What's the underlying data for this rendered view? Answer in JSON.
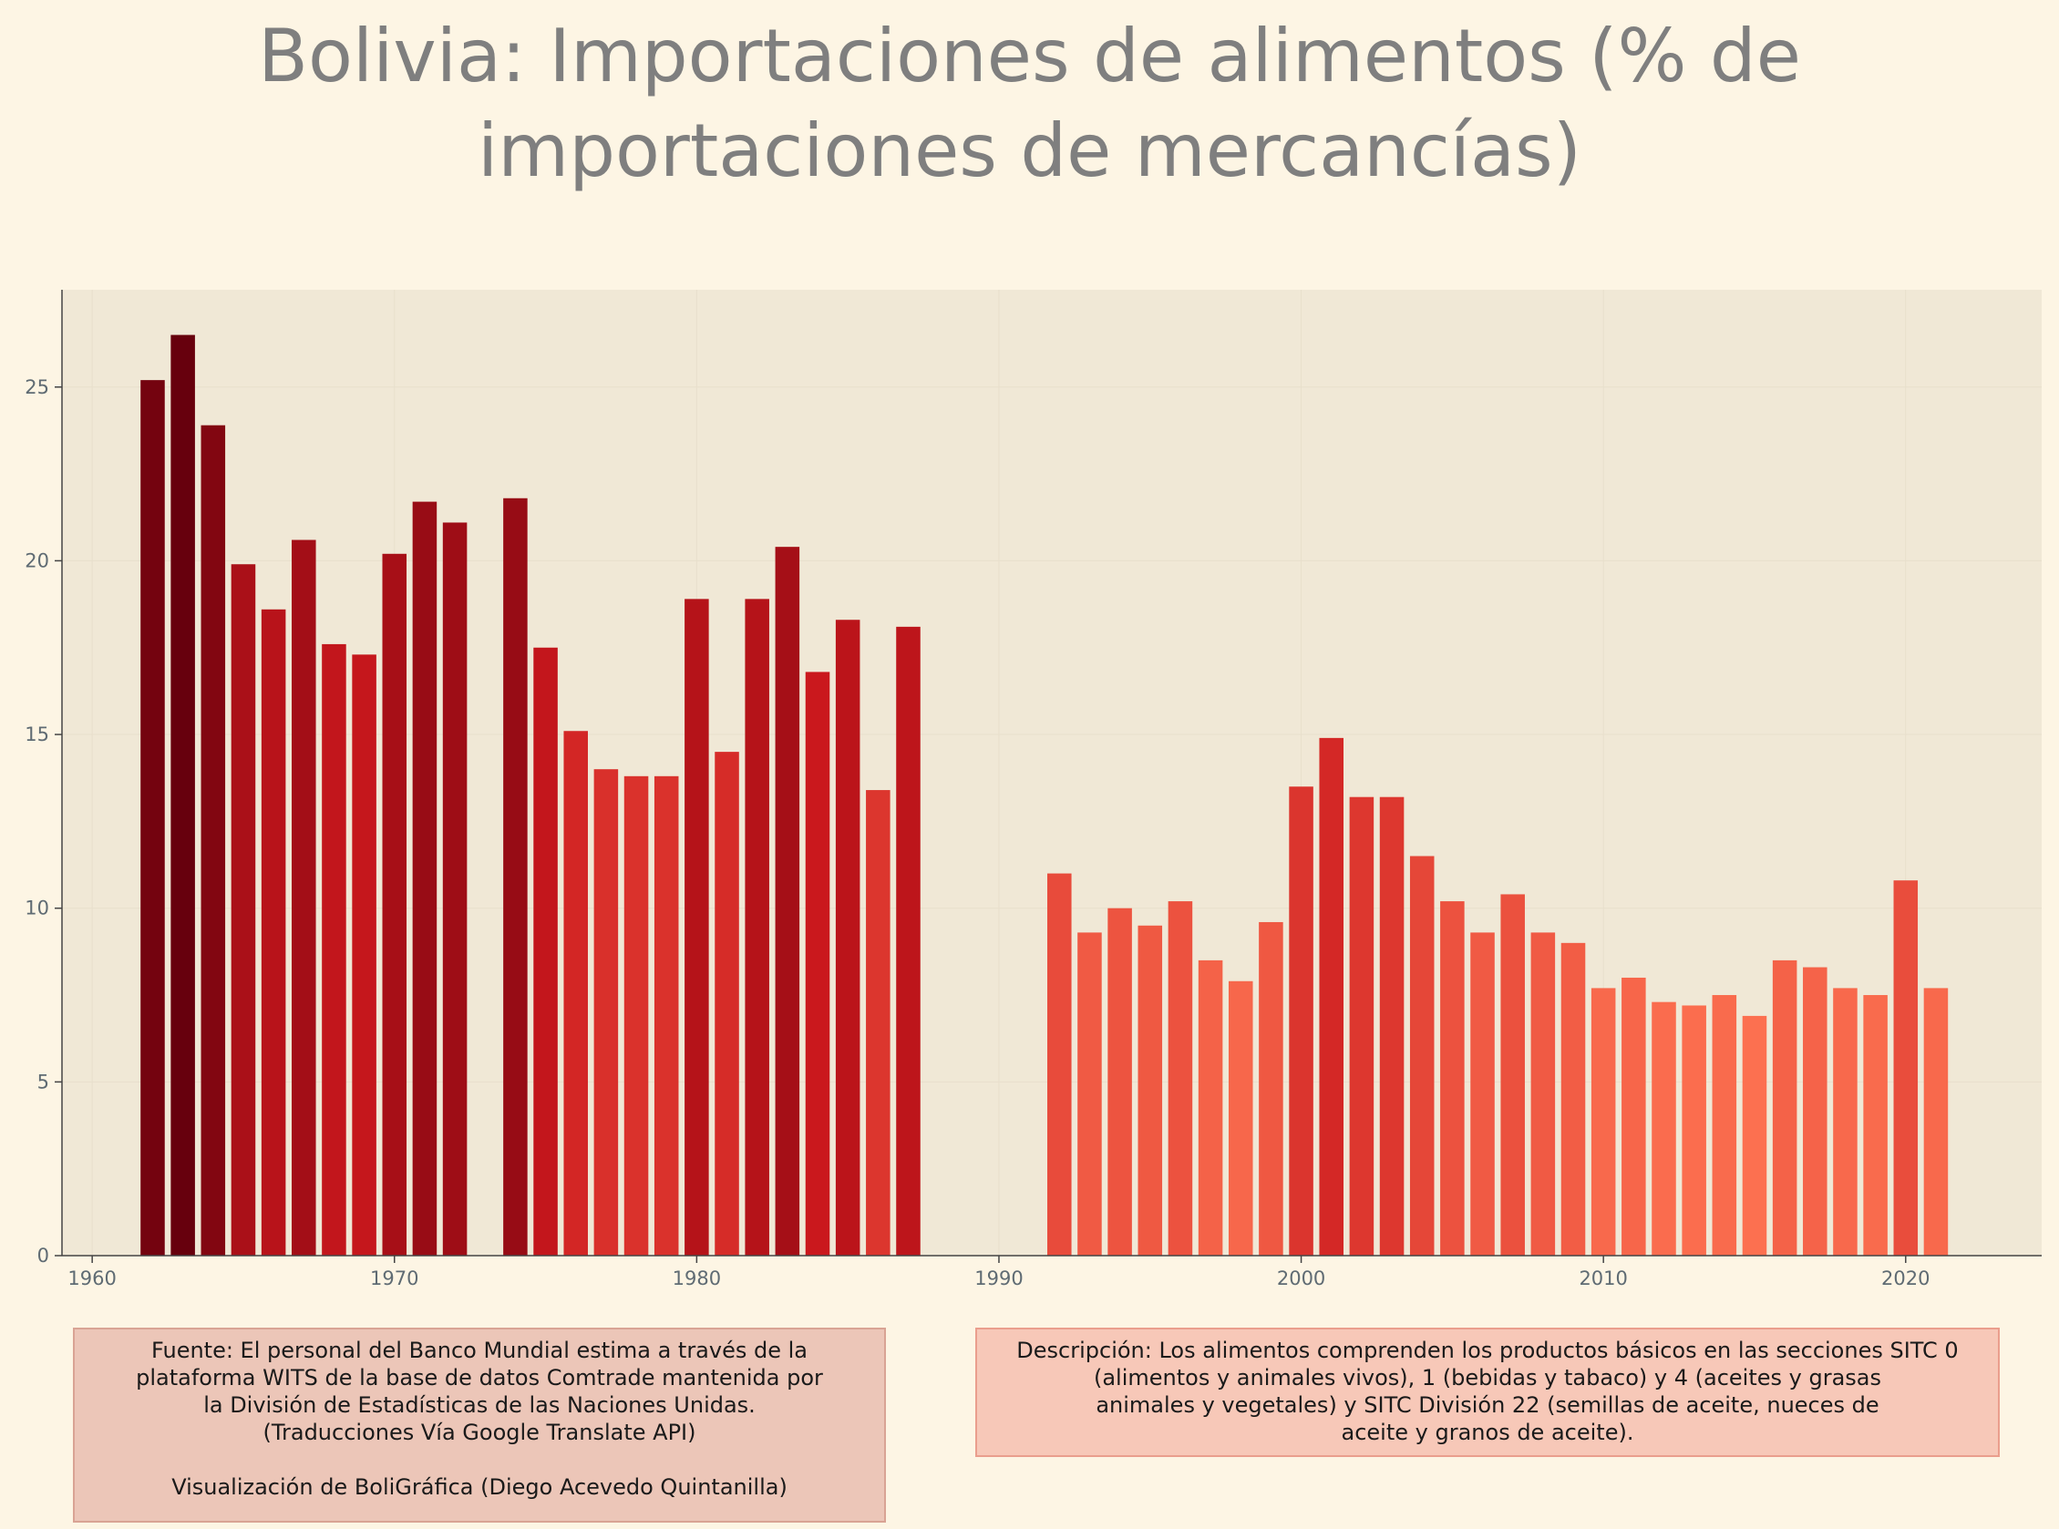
{
  "title_line1": "Bolivia:  Importaciones de alimentos (% de",
  "title_line2": "importaciones de mercancías)",
  "source_note": {
    "line1": "Fuente: El personal del Banco Mundial estima a través de la",
    "line2": "plataforma WITS de la base de datos Comtrade mantenida por",
    "line3": "la División de Estadísticas de las Naciones Unidas.",
    "line4": "(Traducciones Vía Google Translate API)",
    "line5": "Visualización de BoliGráfica (Diego Acevedo Quintanilla)"
  },
  "description_note": {
    "line1": "Descripción: Los alimentos comprenden los productos básicos en las secciones SITC 0",
    "line2": "(alimentos y animales vivos), 1 (bebidas y tabaco) y 4 (aceites y grasas",
    "line3": "animales y vegetales) y SITC División 22 (semillas de aceite, nueces de",
    "line4": "aceite y granos de aceite)."
  },
  "colors": {
    "background": "#fdf5e4",
    "plot_background": "#f0e8d6",
    "bar_dark": "#67000d",
    "bar_light": "#fc7050"
  },
  "chart_data": {
    "type": "bar",
    "title": "Bolivia:  Importaciones de alimentos (% de importaciones de mercancías)",
    "xlabel": "",
    "ylabel": "",
    "xlim": [
      1959,
      2024.5
    ],
    "ylim": [
      0,
      27.8
    ],
    "xticks": [
      1960,
      1970,
      1980,
      1990,
      2000,
      2010,
      2020
    ],
    "yticks": [
      0,
      5,
      10,
      15,
      20,
      25
    ],
    "grid": true,
    "legend": "none",
    "x": [
      1962,
      1963,
      1964,
      1965,
      1966,
      1967,
      1968,
      1969,
      1970,
      1971,
      1972,
      1974,
      1975,
      1976,
      1977,
      1978,
      1979,
      1980,
      1981,
      1982,
      1983,
      1984,
      1985,
      1986,
      1987,
      1992,
      1993,
      1994,
      1995,
      1996,
      1997,
      1998,
      1999,
      2000,
      2001,
      2002,
      2003,
      2004,
      2005,
      2006,
      2007,
      2008,
      2009,
      2010,
      2011,
      2012,
      2013,
      2014,
      2015,
      2016,
      2017,
      2018,
      2019,
      2020,
      2021
    ],
    "values": [
      25.2,
      26.5,
      23.9,
      19.9,
      18.6,
      20.6,
      17.6,
      17.3,
      20.2,
      21.7,
      21.1,
      21.8,
      17.5,
      15.1,
      14.0,
      13.8,
      13.8,
      18.9,
      14.5,
      18.9,
      20.4,
      16.8,
      18.3,
      13.4,
      18.1,
      11.0,
      9.3,
      10.0,
      9.5,
      10.2,
      8.5,
      7.9,
      9.6,
      13.5,
      14.9,
      13.2,
      13.2,
      11.5,
      10.2,
      9.3,
      10.4,
      9.3,
      9.0,
      7.7,
      8.0,
      7.3,
      7.2,
      7.5,
      6.9,
      8.5,
      8.3,
      7.7,
      7.5,
      10.8,
      7.7
    ]
  }
}
